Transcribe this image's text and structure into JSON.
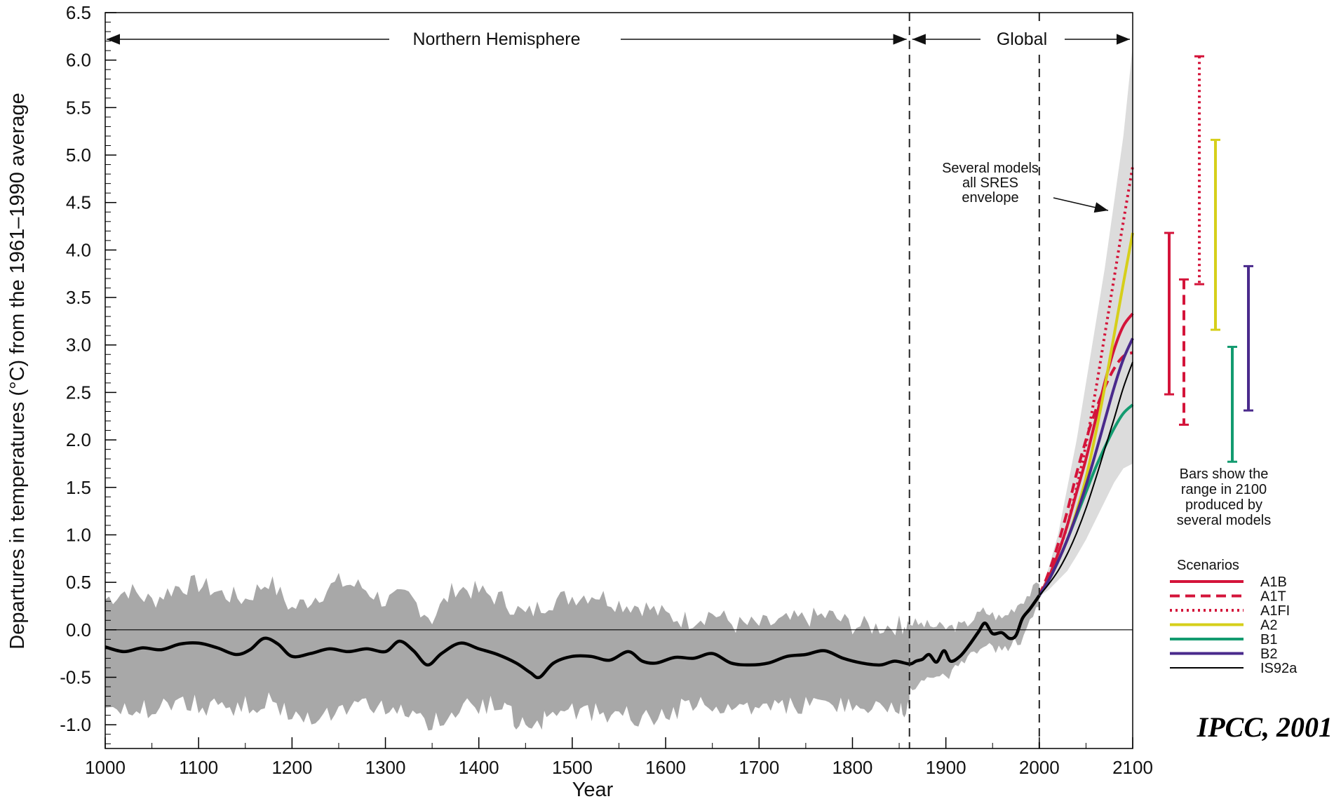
{
  "chart_data": {
    "type": "line",
    "title": "",
    "credit": "IPCC, 2001",
    "xlabel": "Year",
    "ylabel": "Departures in temperatures (°C) from the 1961–1990 average",
    "xlim": [
      1000,
      2100
    ],
    "ylim": [
      -1.25,
      6.5
    ],
    "x_ticks": [
      1000,
      1100,
      1200,
      1300,
      1400,
      1500,
      1600,
      1700,
      1800,
      1900,
      2000,
      2100
    ],
    "y_ticks": [
      "6.5",
      "6.0",
      "5.5",
      "5.0",
      "4.5",
      "4.0",
      "3.5",
      "3.0",
      "2.5",
      "2.0",
      "1.5",
      "1.0",
      "0.5",
      "0.0",
      "-0.5",
      "-1.0"
    ],
    "grid": false,
    "regions": [
      {
        "label": "Northern Hemisphere",
        "x_range": [
          1000,
          1861
        ]
      },
      {
        "label": "Global",
        "x_range": [
          1861,
          2100
        ]
      }
    ],
    "period_boundaries": [
      1861,
      2000
    ],
    "annotations": {
      "envelope": [
        "Several models",
        "all SRES",
        "envelope"
      ],
      "bars_note": [
        "Bars show the",
        "range in 2100",
        "produced by",
        "several models"
      ]
    },
    "observed_series": {
      "name": "",
      "color": "#000000",
      "points": [
        [
          1000,
          -0.18
        ],
        [
          1020,
          -0.23
        ],
        [
          1040,
          -0.19
        ],
        [
          1060,
          -0.21
        ],
        [
          1080,
          -0.15
        ],
        [
          1100,
          -0.14
        ],
        [
          1120,
          -0.19
        ],
        [
          1140,
          -0.26
        ],
        [
          1155,
          -0.21
        ],
        [
          1170,
          -0.09
        ],
        [
          1185,
          -0.15
        ],
        [
          1200,
          -0.28
        ],
        [
          1220,
          -0.25
        ],
        [
          1240,
          -0.2
        ],
        [
          1260,
          -0.23
        ],
        [
          1280,
          -0.2
        ],
        [
          1300,
          -0.23
        ],
        [
          1315,
          -0.12
        ],
        [
          1330,
          -0.22
        ],
        [
          1345,
          -0.37
        ],
        [
          1360,
          -0.25
        ],
        [
          1380,
          -0.14
        ],
        [
          1400,
          -0.2
        ],
        [
          1420,
          -0.26
        ],
        [
          1440,
          -0.35
        ],
        [
          1455,
          -0.45
        ],
        [
          1465,
          -0.5
        ],
        [
          1480,
          -0.35
        ],
        [
          1500,
          -0.28
        ],
        [
          1520,
          -0.28
        ],
        [
          1540,
          -0.32
        ],
        [
          1560,
          -0.23
        ],
        [
          1575,
          -0.33
        ],
        [
          1590,
          -0.35
        ],
        [
          1610,
          -0.29
        ],
        [
          1630,
          -0.3
        ],
        [
          1650,
          -0.25
        ],
        [
          1670,
          -0.35
        ],
        [
          1690,
          -0.37
        ],
        [
          1710,
          -0.35
        ],
        [
          1730,
          -0.28
        ],
        [
          1750,
          -0.26
        ],
        [
          1770,
          -0.22
        ],
        [
          1790,
          -0.3
        ],
        [
          1810,
          -0.35
        ],
        [
          1830,
          -0.37
        ],
        [
          1845,
          -0.33
        ],
        [
          1861,
          -0.36
        ],
        [
          1868,
          -0.33
        ],
        [
          1875,
          -0.31
        ],
        [
          1882,
          -0.26
        ],
        [
          1890,
          -0.34
        ],
        [
          1898,
          -0.22
        ],
        [
          1905,
          -0.33
        ],
        [
          1915,
          -0.28
        ],
        [
          1925,
          -0.16
        ],
        [
          1935,
          -0.02
        ],
        [
          1942,
          0.07
        ],
        [
          1950,
          -0.04
        ],
        [
          1960,
          -0.03
        ],
        [
          1968,
          -0.09
        ],
        [
          1975,
          -0.06
        ],
        [
          1982,
          0.12
        ],
        [
          1990,
          0.22
        ],
        [
          2000,
          0.36
        ]
      ]
    },
    "nh_uncertainty_band": {
      "color": "#a8a8a8",
      "upper": [
        [
          1000,
          0.32
        ],
        [
          1025,
          0.42
        ],
        [
          1050,
          0.3
        ],
        [
          1075,
          0.45
        ],
        [
          1100,
          0.48
        ],
        [
          1125,
          0.38
        ],
        [
          1150,
          0.32
        ],
        [
          1175,
          0.52
        ],
        [
          1200,
          0.22
        ],
        [
          1225,
          0.35
        ],
        [
          1250,
          0.5
        ],
        [
          1275,
          0.45
        ],
        [
          1300,
          0.3
        ],
        [
          1325,
          0.35
        ],
        [
          1350,
          0.12
        ],
        [
          1375,
          0.45
        ],
        [
          1400,
          0.4
        ],
        [
          1425,
          0.32
        ],
        [
          1450,
          0.15
        ],
        [
          1475,
          0.3
        ],
        [
          1500,
          0.35
        ],
        [
          1525,
          0.38
        ],
        [
          1550,
          0.28
        ],
        [
          1575,
          0.25
        ],
        [
          1600,
          0.15
        ],
        [
          1625,
          0.1
        ],
        [
          1650,
          0.18
        ],
        [
          1675,
          0.05
        ],
        [
          1700,
          0.05
        ],
        [
          1725,
          0.08
        ],
        [
          1750,
          0.12
        ],
        [
          1775,
          0.15
        ],
        [
          1800,
          0.05
        ],
        [
          1825,
          0.03
        ],
        [
          1850,
          0.05
        ],
        [
          1861,
          0.06
        ]
      ],
      "lower": [
        [
          1861,
          -0.85
        ],
        [
          1850,
          -0.82
        ],
        [
          1825,
          -0.85
        ],
        [
          1800,
          -0.8
        ],
        [
          1775,
          -0.75
        ],
        [
          1750,
          -0.78
        ],
        [
          1725,
          -0.8
        ],
        [
          1700,
          -0.85
        ],
        [
          1675,
          -0.85
        ],
        [
          1650,
          -0.8
        ],
        [
          1625,
          -0.78
        ],
        [
          1600,
          -0.9
        ],
        [
          1575,
          -0.92
        ],
        [
          1550,
          -0.9
        ],
        [
          1525,
          -0.88
        ],
        [
          1500,
          -0.85
        ],
        [
          1475,
          -0.92
        ],
        [
          1460,
          -1.0
        ],
        [
          1440,
          -0.95
        ],
        [
          1425,
          -0.82
        ],
        [
          1400,
          -0.78
        ],
        [
          1375,
          -0.85
        ],
        [
          1350,
          -0.98
        ],
        [
          1325,
          -0.9
        ],
        [
          1300,
          -0.82
        ],
        [
          1275,
          -0.8
        ],
        [
          1250,
          -0.85
        ],
        [
          1225,
          -0.9
        ],
        [
          1200,
          -0.92
        ],
        [
          1175,
          -0.75
        ],
        [
          1150,
          -0.8
        ],
        [
          1125,
          -0.85
        ],
        [
          1100,
          -0.78
        ],
        [
          1075,
          -0.8
        ],
        [
          1050,
          -0.85
        ],
        [
          1025,
          -0.8
        ],
        [
          1000,
          -0.82
        ]
      ]
    },
    "global_obs_band": {
      "color": "#b0b0b0",
      "upper": [
        [
          1861,
          0.08
        ],
        [
          1880,
          0.05
        ],
        [
          1900,
          0.02
        ],
        [
          1920,
          0.05
        ],
        [
          1940,
          0.2
        ],
        [
          1960,
          0.12
        ],
        [
          1980,
          0.3
        ],
        [
          2000,
          0.48
        ]
      ],
      "lower": [
        [
          2000,
          0.25
        ],
        [
          1980,
          -0.1
        ],
        [
          1960,
          -0.22
        ],
        [
          1940,
          -0.15
        ],
        [
          1920,
          -0.35
        ],
        [
          1900,
          -0.5
        ],
        [
          1880,
          -0.55
        ],
        [
          1861,
          -0.6
        ]
      ]
    },
    "sres_envelope": {
      "name": "Several models all SRES envelope",
      "color": "#dcdcdc",
      "upper": [
        [
          2000,
          0.35
        ],
        [
          2010,
          0.65
        ],
        [
          2020,
          1.0
        ],
        [
          2030,
          1.5
        ],
        [
          2040,
          2.0
        ],
        [
          2050,
          2.6
        ],
        [
          2060,
          3.2
        ],
        [
          2070,
          3.8
        ],
        [
          2080,
          4.5
        ],
        [
          2090,
          5.2
        ],
        [
          2100,
          6.15
        ]
      ],
      "lower": [
        [
          2100,
          1.75
        ],
        [
          2090,
          1.7
        ],
        [
          2080,
          1.55
        ],
        [
          2070,
          1.35
        ],
        [
          2060,
          1.15
        ],
        [
          2050,
          0.95
        ],
        [
          2040,
          0.78
        ],
        [
          2030,
          0.62
        ],
        [
          2020,
          0.52
        ],
        [
          2010,
          0.42
        ],
        [
          2000,
          0.35
        ]
      ]
    },
    "series": [
      {
        "name": "A1B",
        "color": "#d4143a",
        "dash": "solid",
        "width": 4,
        "x": [
          2000,
          2010,
          2020,
          2030,
          2040,
          2050,
          2060,
          2070,
          2080,
          2090,
          2100
        ],
        "y": [
          0.36,
          0.55,
          0.8,
          1.1,
          1.45,
          1.8,
          2.2,
          2.6,
          2.95,
          3.2,
          3.33
        ]
      },
      {
        "name": "A1T",
        "color": "#d4143a",
        "dash": "dashed",
        "width": 4,
        "x": [
          2000,
          2010,
          2020,
          2030,
          2040,
          2050,
          2060,
          2070,
          2080,
          2090,
          2100
        ],
        "y": [
          0.36,
          0.6,
          0.9,
          1.25,
          1.65,
          2.0,
          2.3,
          2.55,
          2.75,
          2.88,
          2.92
        ]
      },
      {
        "name": "A1FI",
        "color": "#d4143a",
        "dash": "dotted",
        "width": 4,
        "x": [
          2000,
          2010,
          2020,
          2030,
          2040,
          2050,
          2060,
          2070,
          2080,
          2090,
          2100
        ],
        "y": [
          0.36,
          0.55,
          0.8,
          1.1,
          1.5,
          1.95,
          2.5,
          3.1,
          3.7,
          4.3,
          4.88
        ]
      },
      {
        "name": "A2",
        "color": "#d6cf1a",
        "dash": "solid",
        "width": 4,
        "x": [
          2000,
          2010,
          2020,
          2030,
          2040,
          2050,
          2060,
          2070,
          2080,
          2090,
          2100
        ],
        "y": [
          0.36,
          0.52,
          0.72,
          0.95,
          1.25,
          1.6,
          2.05,
          2.55,
          3.1,
          3.65,
          4.18
        ]
      },
      {
        "name": "B1",
        "color": "#139b70",
        "dash": "solid",
        "width": 4,
        "x": [
          2000,
          2010,
          2020,
          2030,
          2040,
          2050,
          2060,
          2070,
          2080,
          2090,
          2100
        ],
        "y": [
          0.36,
          0.52,
          0.72,
          0.95,
          1.2,
          1.45,
          1.7,
          1.92,
          2.12,
          2.28,
          2.37
        ]
      },
      {
        "name": "B2",
        "color": "#4a2a8c",
        "dash": "solid",
        "width": 4,
        "x": [
          2000,
          2010,
          2020,
          2030,
          2040,
          2050,
          2060,
          2070,
          2080,
          2090,
          2100
        ],
        "y": [
          0.36,
          0.52,
          0.72,
          0.95,
          1.22,
          1.52,
          1.85,
          2.2,
          2.55,
          2.85,
          3.07
        ]
      },
      {
        "name": "IS92a",
        "color": "#000000",
        "dash": "solid",
        "width": 2,
        "x": [
          2000,
          2010,
          2020,
          2030,
          2040,
          2050,
          2060,
          2070,
          2080,
          2090,
          2100
        ],
        "y": [
          0.36,
          0.48,
          0.62,
          0.8,
          1.02,
          1.28,
          1.58,
          1.9,
          2.22,
          2.55,
          2.82
        ]
      }
    ],
    "range_bars_2100": [
      {
        "name": "A1B",
        "min": 2.48,
        "max": 4.18,
        "color": "#d4143a",
        "dash": "solid"
      },
      {
        "name": "A1T",
        "min": 2.16,
        "max": 3.69,
        "color": "#d4143a",
        "dash": "dashed"
      },
      {
        "name": "A1FI",
        "min": 3.64,
        "max": 6.04,
        "color": "#d4143a",
        "dash": "dotted"
      },
      {
        "name": "A2",
        "min": 3.16,
        "max": 5.16,
        "color": "#d6cf1a",
        "dash": "solid"
      },
      {
        "name": "B1",
        "min": 1.77,
        "max": 2.98,
        "color": "#139b70",
        "dash": "solid"
      },
      {
        "name": "B2",
        "min": 2.31,
        "max": 3.83,
        "color": "#4a2a8c",
        "dash": "solid"
      }
    ],
    "legend": {
      "title": "Scenarios",
      "placement": "right",
      "entries": [
        {
          "label": "A1B",
          "color": "#d4143a",
          "dash": "solid",
          "width": 4
        },
        {
          "label": "A1T",
          "color": "#d4143a",
          "dash": "dashed",
          "width": 4
        },
        {
          "label": "A1FI",
          "color": "#d4143a",
          "dash": "dotted",
          "width": 4
        },
        {
          "label": "A2",
          "color": "#d6cf1a",
          "dash": "solid",
          "width": 4
        },
        {
          "label": "B1",
          "color": "#139b70",
          "dash": "solid",
          "width": 4
        },
        {
          "label": "B2",
          "color": "#4a2a8c",
          "dash": "solid",
          "width": 4
        },
        {
          "label": "IS92a",
          "color": "#000000",
          "dash": "solid",
          "width": 2
        }
      ]
    }
  }
}
